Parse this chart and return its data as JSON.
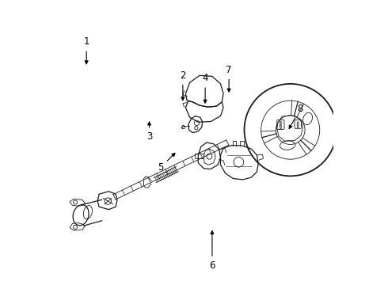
{
  "bg_color": "#ffffff",
  "line_color": "#1a1a1a",
  "label_color": "#000000",
  "label_fontsize": 8.5,
  "figsize": [
    4.9,
    3.6
  ],
  "dpi": 100,
  "labels": {
    "1": {
      "lxy": [
        0.115,
        0.86
      ],
      "pxy": [
        0.115,
        0.77
      ]
    },
    "2": {
      "lxy": [
        0.46,
        0.74
      ],
      "pxy": [
        0.46,
        0.64
      ]
    },
    "3": {
      "lxy": [
        0.34,
        0.52
      ],
      "pxy": [
        0.34,
        0.585
      ]
    },
    "4": {
      "lxy": [
        0.54,
        0.73
      ],
      "pxy": [
        0.54,
        0.63
      ]
    },
    "5": {
      "lxy": [
        0.38,
        0.41
      ],
      "pxy": [
        0.44,
        0.47
      ]
    },
    "6": {
      "lxy": [
        0.565,
        0.06
      ],
      "pxy": [
        0.565,
        0.195
      ]
    },
    "7": {
      "lxy": [
        0.625,
        0.76
      ],
      "pxy": [
        0.625,
        0.67
      ]
    },
    "8": {
      "lxy": [
        0.88,
        0.62
      ],
      "pxy": [
        0.835,
        0.54
      ]
    }
  }
}
